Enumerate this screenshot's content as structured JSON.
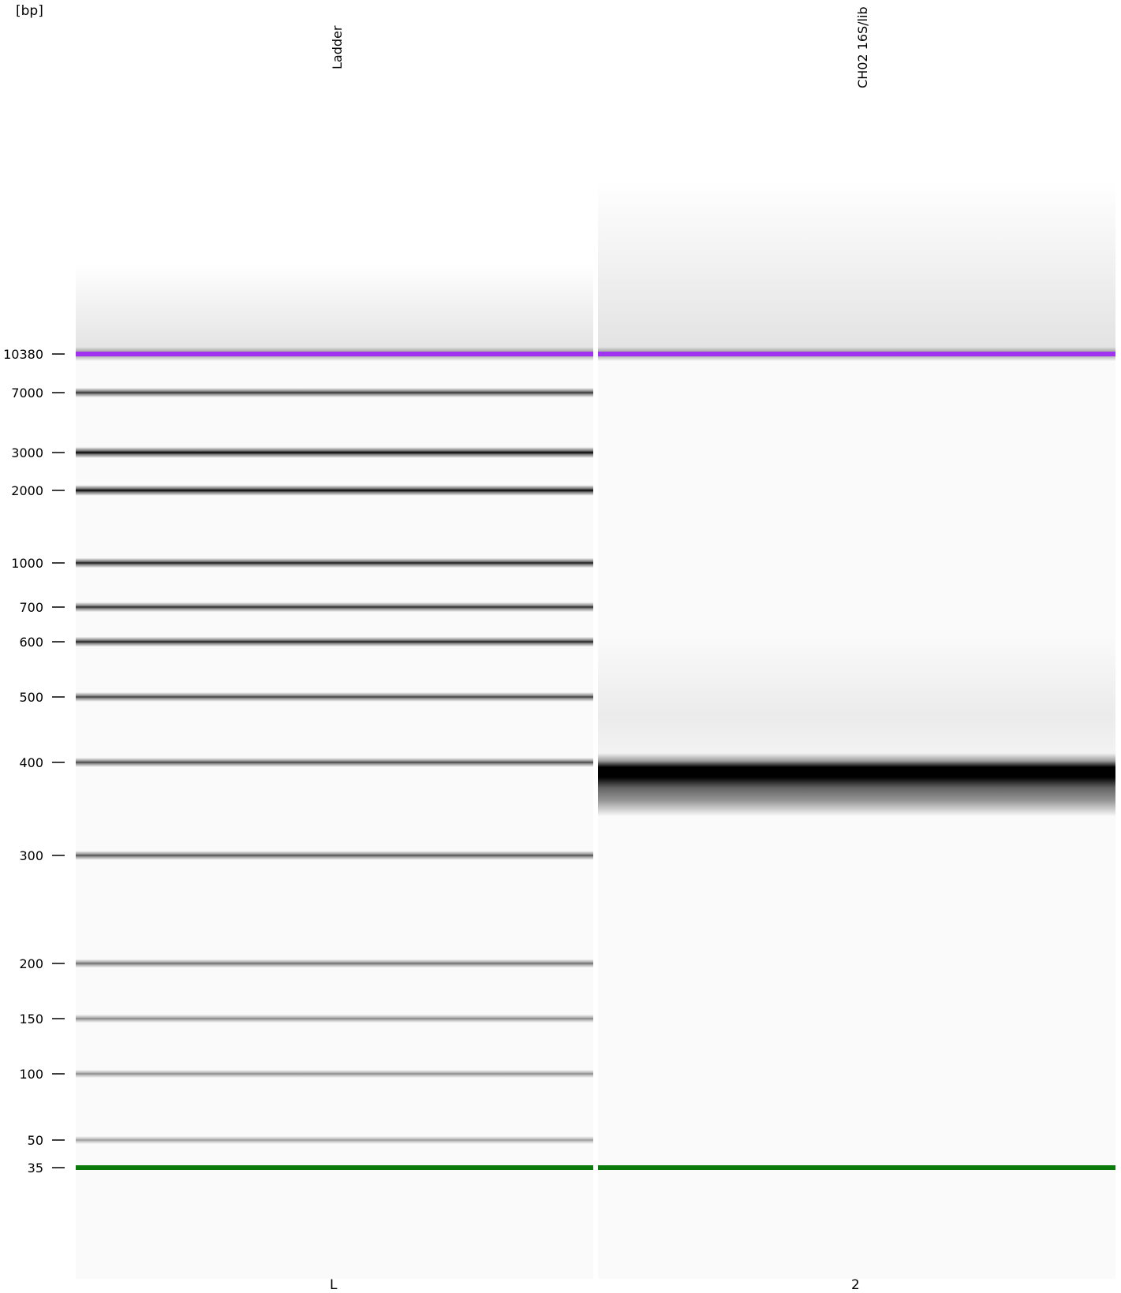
{
  "chart_data": {
    "type": "gel",
    "unit_label": "[bp]",
    "y_ticks": [
      10380,
      7000,
      3000,
      2000,
      1000,
      700,
      600,
      500,
      400,
      300,
      200,
      150,
      100,
      50,
      35
    ],
    "lanes": [
      {
        "name": "Ladder",
        "id": "L",
        "bands": [
          {
            "bp": 10380,
            "kind": "upper_marker"
          },
          {
            "bp": 7000,
            "intensity": 0.7
          },
          {
            "bp": 3000,
            "intensity": 1.0
          },
          {
            "bp": 2000,
            "intensity": 0.92
          },
          {
            "bp": 1000,
            "intensity": 0.78
          },
          {
            "bp": 700,
            "intensity": 0.72
          },
          {
            "bp": 600,
            "intensity": 0.76
          },
          {
            "bp": 500,
            "intensity": 0.66
          },
          {
            "bp": 400,
            "intensity": 0.64
          },
          {
            "bp": 300,
            "intensity": 0.6
          },
          {
            "bp": 200,
            "intensity": 0.5
          },
          {
            "bp": 150,
            "intensity": 0.42
          },
          {
            "bp": 100,
            "intensity": 0.4
          },
          {
            "bp": 50,
            "intensity": 0.34
          },
          {
            "bp": 35,
            "kind": "lower_marker"
          }
        ]
      },
      {
        "name": "CH02 16S/lib",
        "id": "2",
        "bands": [
          {
            "bp": 10380,
            "kind": "upper_marker"
          },
          {
            "bp": 390,
            "intensity": 1.0,
            "kind": "broad"
          },
          {
            "bp": 35,
            "kind": "lower_marker"
          }
        ]
      }
    ],
    "marker_colors": {
      "upper": "#a033f0",
      "lower": "#0a7a0a"
    }
  }
}
